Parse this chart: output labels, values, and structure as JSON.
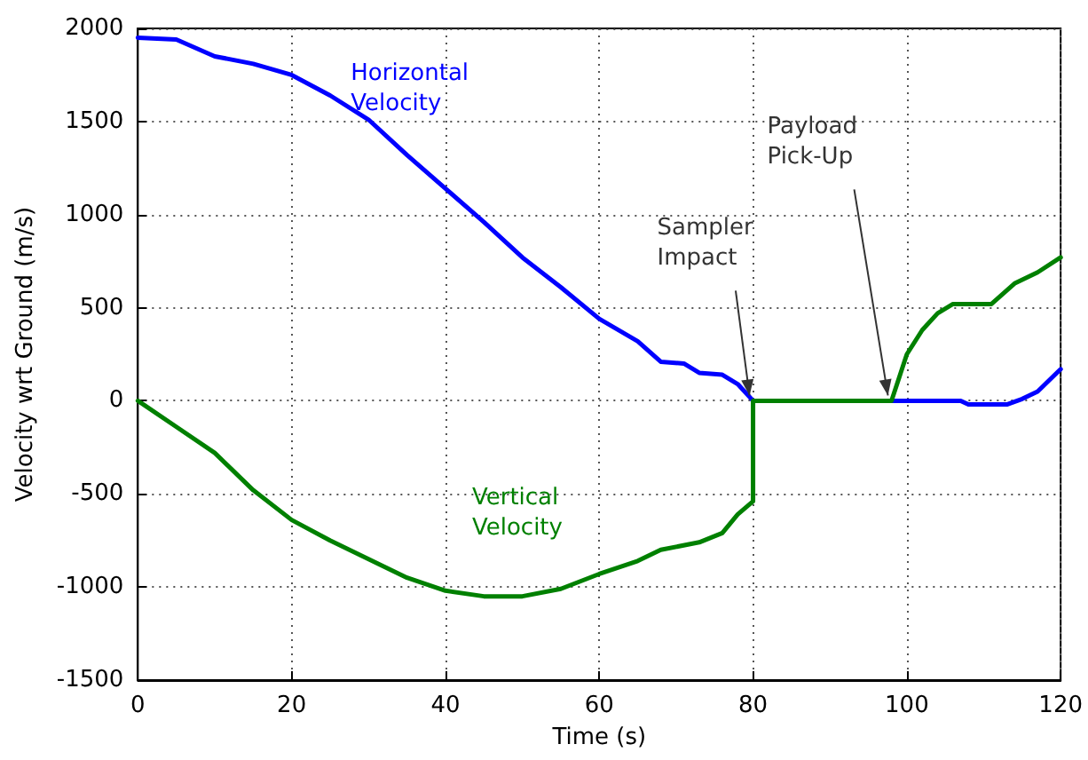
{
  "chart_data": {
    "type": "line",
    "xlabel": "Time (s)",
    "ylabel": "Velocity wrt Ground (m/s)",
    "xlim": [
      0,
      120
    ],
    "xticks": [
      0,
      20,
      40,
      60,
      80,
      100,
      120
    ],
    "ylim": [
      -1500,
      2000
    ],
    "yticks": [
      -1500,
      -1000,
      -500,
      0,
      500,
      1000,
      1500,
      2000
    ],
    "grid": true,
    "marker": "none",
    "line_style": "solid",
    "series": [
      {
        "name": "Horizontal Velocity",
        "color": "#0000ff",
        "x": [
          0,
          5,
          10,
          15,
          20,
          25,
          30,
          35,
          40,
          45,
          50,
          55,
          60,
          65,
          68,
          71,
          73,
          76,
          78,
          80,
          90,
          100,
          107,
          108,
          113,
          115,
          117,
          120
        ],
        "values": [
          1950,
          1940,
          1850,
          1810,
          1750,
          1640,
          1510,
          1320,
          1140,
          960,
          770,
          610,
          440,
          320,
          210,
          200,
          150,
          140,
          90,
          0,
          0,
          0,
          0,
          -20,
          -20,
          10,
          50,
          170
        ]
      },
      {
        "name": "Vertical Velocity",
        "color": "#008000",
        "x": [
          0,
          5,
          10,
          15,
          20,
          25,
          30,
          35,
          40,
          45,
          50,
          55,
          60,
          65,
          68,
          73,
          76,
          78,
          80,
          80,
          90,
          98,
          100,
          102,
          104,
          106,
          111,
          114,
          117,
          120
        ],
        "values": [
          0,
          -140,
          -280,
          -480,
          -640,
          -750,
          -850,
          -950,
          -1020,
          -1050,
          -1050,
          -1010,
          -930,
          -860,
          -800,
          -760,
          -710,
          -610,
          -540,
          0,
          0,
          0,
          250,
          380,
          470,
          520,
          520,
          630,
          690,
          770
        ]
      }
    ],
    "annotations": [
      {
        "text": "Sampler Impact",
        "x": 80,
        "y": 0
      },
      {
        "text": "Payload Pick-Up",
        "x": 98,
        "y": 0
      }
    ]
  }
}
